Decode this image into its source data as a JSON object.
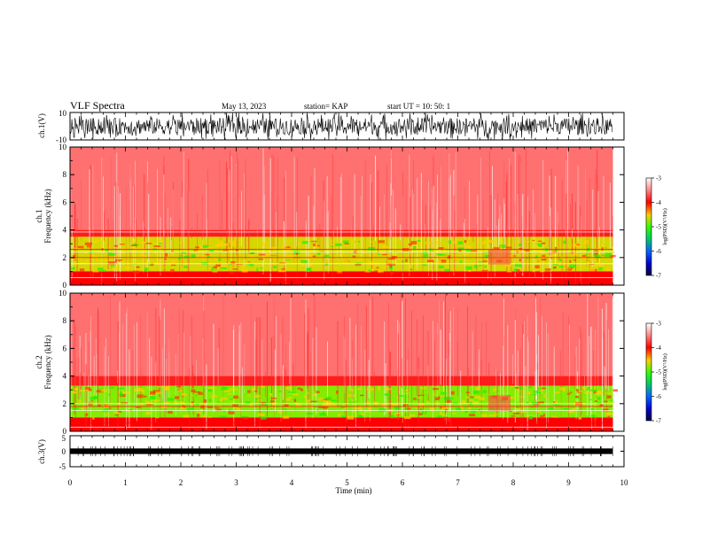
{
  "header": {
    "title": "VLF Spectra",
    "date": "May 13, 2023",
    "station": "station= KAP",
    "start": "start  UT  =    10: 50: 1"
  },
  "chart_data": [
    {
      "type": "line",
      "panel": "ch1-waveform",
      "ylabel": "ch.1(V)",
      "ylim": [
        -10,
        10
      ],
      "yticks": [
        "10",
        "-10"
      ],
      "xlim": [
        0,
        10
      ],
      "description_values": {
        "amplitude_range": [
          -10,
          10
        ],
        "x_end": 9.8
      },
      "color": "#000000"
    },
    {
      "type": "heatmap",
      "panel": "ch1-spectrogram",
      "ylabel": "ch.1",
      "ylabel2": "Frequency (kHz)",
      "ylim": [
        0,
        10
      ],
      "yticks": [
        "0",
        "2",
        "4",
        "6",
        "8",
        "10"
      ],
      "xlim": [
        0,
        10
      ],
      "x_end": 9.8,
      "bands": [
        {
          "f0": 4.0,
          "f1": 10.0,
          "level": -3.6
        },
        {
          "f0": 3.5,
          "f1": 4.0,
          "level": -3.9
        },
        {
          "f0": 1.0,
          "f1": 3.5,
          "level": -4.6
        },
        {
          "f0": 0.0,
          "f1": 1.0,
          "level": -4.0
        }
      ],
      "lines_khz": [
        3.85,
        2.6,
        2.4,
        2.0,
        1.55,
        0.9,
        0.55,
        0.25
      ],
      "colorbar": {
        "label": "log(PSD)(V²/Hz)",
        "ticks": [
          "-3",
          "-4",
          "-5",
          "-6",
          "-7"
        ],
        "range": [
          -7,
          -3
        ]
      }
    },
    {
      "type": "heatmap",
      "panel": "ch2-spectrogram",
      "ylabel": "ch.2",
      "ylabel2": "Frequency (kHz)",
      "ylim": [
        0,
        10
      ],
      "yticks": [
        "0",
        "2",
        "4",
        "6",
        "8",
        "10"
      ],
      "xlim": [
        0,
        10
      ],
      "x_end": 9.8,
      "bands": [
        {
          "f0": 4.0,
          "f1": 10.0,
          "level": -3.6
        },
        {
          "f0": 3.3,
          "f1": 4.0,
          "level": -3.9
        },
        {
          "f0": 1.0,
          "f1": 3.3,
          "level": -4.8
        },
        {
          "f0": 0.0,
          "f1": 1.0,
          "level": -4.0
        }
      ],
      "lines_khz": [
        2.0,
        1.8,
        1.5,
        0.6,
        0.3
      ],
      "colorbar": {
        "label": "log(PSD)(V²/Hz)",
        "ticks": [
          "-3",
          "-4",
          "-5",
          "-6",
          "-7"
        ],
        "range": [
          -7,
          -3
        ]
      }
    },
    {
      "type": "line",
      "panel": "ch3-waveform",
      "ylabel": "ch.3(V)",
      "ylim": [
        -5,
        5
      ],
      "yticks": [
        "5",
        "0",
        "-5"
      ],
      "xlim": [
        0,
        10
      ],
      "x_end": 9.8,
      "color": "#000000"
    }
  ],
  "xaxis": {
    "label": "Time (min)",
    "ticks": [
      "0",
      "1",
      "2",
      "3",
      "4",
      "5",
      "6",
      "7",
      "8",
      "9",
      "10"
    ]
  },
  "colors": {
    "ink": "#000000",
    "background": "#ffffff"
  }
}
